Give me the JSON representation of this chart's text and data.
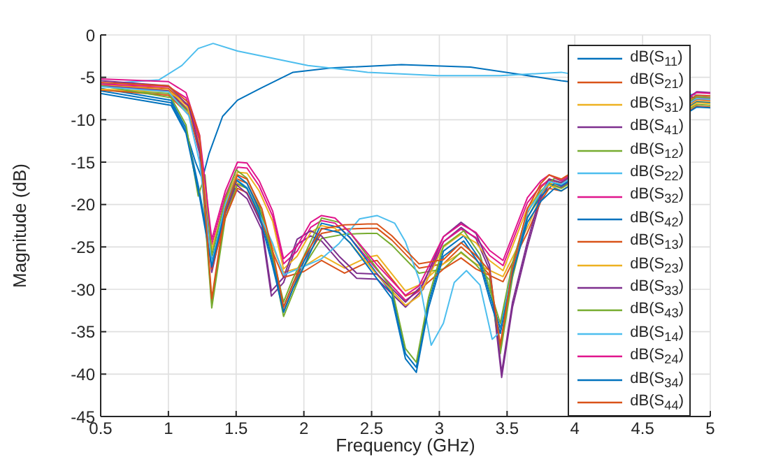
{
  "chart_data": {
    "type": "line",
    "xlabel": "Frequency (GHz)",
    "ylabel": "Magnitude (dB)",
    "xlim": [
      0.5,
      5
    ],
    "xticks": [
      0.5,
      1,
      1.5,
      2,
      2.5,
      3,
      3.5,
      4,
      4.5,
      5
    ],
    "ylim": [
      -45,
      0
    ],
    "yticks": [
      -45,
      -40,
      -35,
      -30,
      -25,
      -20,
      -15,
      -10,
      -5,
      0
    ],
    "grid": true,
    "legend": "right",
    "marker": "none",
    "line_style": "solid",
    "series": [
      {
        "name": "dB(S$_{11}$)",
        "color": "#0072bd",
        "x": [
          0.5,
          1.02,
          1.13,
          1.2,
          1.25,
          1.3,
          1.4,
          1.51,
          1.68,
          1.92,
          2.2,
          2.72,
          3.23,
          3.57,
          3.9,
          4.9,
          5
        ],
        "values": [
          -6.6,
          -8,
          -11.4,
          -15,
          -17,
          -14,
          -9.6,
          -7.7,
          -6.3,
          -4.4,
          -3.9,
          -3.5,
          -3.8,
          -4.6,
          -5.4,
          -7.4,
          -7.5
        ]
      },
      {
        "name": "dB(S$_{21}$)",
        "color": "#d95319",
        "x": [
          0.5,
          1.0,
          1.15,
          1.23,
          1.32,
          1.42,
          1.51,
          1.58,
          1.69,
          1.77,
          1.85,
          2.0,
          2.13,
          2.3,
          2.47,
          2.54,
          2.65,
          2.85,
          3.03,
          3.16,
          3.27,
          3.37,
          3.45,
          3.54,
          3.65,
          3.75,
          3.81,
          3.9,
          4.9,
          5
        ],
        "values": [
          -5.9,
          -6.3,
          -8.5,
          -12.4,
          -31.6,
          -21,
          -17,
          -17.5,
          -21,
          -26,
          -32.6,
          -26.7,
          -23.4,
          -22.9,
          -22.8,
          -22.8,
          -24.2,
          -27.5,
          -27,
          -25,
          -26.5,
          -28.3,
          -37,
          -28,
          -21,
          -18,
          -17,
          -17.5,
          -7.6,
          -7.7
        ]
      },
      {
        "name": "dB(S$_{31}$)",
        "color": "#edb120",
        "x": [
          0.5,
          1.0,
          1.15,
          1.23,
          1.32,
          1.42,
          1.51,
          1.58,
          1.69,
          1.77,
          1.85,
          2.0,
          2.13,
          2.3,
          2.47,
          2.54,
          2.75,
          2.85,
          3.03,
          3.16,
          3.27,
          3.47,
          3.65,
          3.75,
          3.81,
          3.9,
          4.9,
          5
        ],
        "values": [
          -5.9,
          -6.5,
          -8.8,
          -13,
          -27,
          -21,
          -17.5,
          -18,
          -21.5,
          -25,
          -28,
          -27.3,
          -26,
          -27.5,
          -26.2,
          -26,
          -30.2,
          -29.5,
          -27,
          -25.7,
          -27,
          -28.5,
          -22.7,
          -19,
          -17.5,
          -17.8,
          -7.8,
          -7.9
        ]
      },
      {
        "name": "dB(S$_{41}$)",
        "color": "#7e2f8e",
        "x": [
          0.5,
          1.0,
          1.15,
          1.23,
          1.32,
          1.42,
          1.49,
          1.58,
          1.69,
          1.76,
          1.85,
          1.95,
          2.05,
          2.13,
          2.26,
          2.39,
          2.54,
          2.75,
          2.88,
          3.03,
          3.16,
          3.27,
          3.37,
          3.46,
          3.54,
          3.65,
          3.75,
          3.81,
          3.9,
          4.9,
          5
        ],
        "values": [
          -6,
          -6.6,
          -9,
          -14,
          -28,
          -21,
          -18.1,
          -19.3,
          -23,
          -30.8,
          -29.2,
          -24.7,
          -23.7,
          -24.3,
          -26.7,
          -28.7,
          -28.8,
          -32.1,
          -30,
          -24.4,
          -22.7,
          -24,
          -27.7,
          -40.4,
          -32.1,
          -25,
          -19.3,
          -17.6,
          -18,
          -7.3,
          -7.4
        ]
      },
      {
        "name": "dB(S$_{12}$)",
        "color": "#77ac30",
        "x": [
          0.5,
          1.0,
          1.15,
          1.23,
          1.32,
          1.42,
          1.51,
          1.58,
          1.69,
          1.77,
          1.85,
          2.0,
          2.13,
          2.3,
          2.47,
          2.54,
          2.65,
          2.85,
          3.03,
          3.16,
          3.27,
          3.37,
          3.45,
          3.54,
          3.65,
          3.75,
          3.81,
          3.9,
          4.9,
          5
        ],
        "values": [
          -6.5,
          -6.9,
          -9.1,
          -13,
          -32.2,
          -21.6,
          -17.6,
          -18.1,
          -21.6,
          -26.6,
          -33.2,
          -27.3,
          -24,
          -23.5,
          -23.4,
          -23.4,
          -24.8,
          -28.1,
          -27.6,
          -25.6,
          -27.1,
          -28.9,
          -37.6,
          -28.6,
          -21.6,
          -18.6,
          -17.6,
          -18.1,
          -8.2,
          -8.3
        ]
      },
      {
        "name": "dB(S$_{22}$)",
        "color": "#4dbeee",
        "x": [
          0.5,
          0.93,
          1.1,
          1.22,
          1.33,
          1.51,
          2.03,
          2.47,
          2.99,
          3.45,
          3.9,
          4.9,
          5
        ],
        "values": [
          -5.8,
          -5.3,
          -3.6,
          -1.6,
          -1,
          -1.9,
          -3.6,
          -4.4,
          -4.8,
          -4.8,
          -4.4,
          -7.1,
          -7.2
        ]
      },
      {
        "name": "dB(S$_{32}$)",
        "color": "#e0158c",
        "x": [
          0.5,
          1.0,
          1.13,
          1.23,
          1.32,
          1.42,
          1.51,
          1.58,
          1.67,
          1.77,
          1.85,
          1.95,
          2.05,
          2.13,
          2.23,
          2.34,
          2.54,
          2.75,
          2.85,
          3.03,
          3.16,
          3.27,
          3.37,
          3.47,
          3.65,
          3.75,
          3.81,
          3.9,
          4.9,
          5
        ],
        "values": [
          -5.8,
          -6.1,
          -7.4,
          -12.4,
          -24.7,
          -19,
          -15.6,
          -15.7,
          -17.8,
          -21.4,
          -27,
          -25.5,
          -22.7,
          -21.9,
          -22.2,
          -23.9,
          -27.7,
          -31.3,
          -30.2,
          -24.4,
          -22.9,
          -23.9,
          -26,
          -27.2,
          -19.8,
          -17.8,
          -17.1,
          -17.8,
          -7.4,
          -7.5
        ]
      },
      {
        "name": "dB(S$_{42}$)",
        "color": "#0072bd",
        "x": [
          0.5,
          1.02,
          1.13,
          1.23,
          1.32,
          1.42,
          1.5,
          1.58,
          1.67,
          1.77,
          1.85,
          1.92,
          2.0,
          2.13,
          2.26,
          2.34,
          2.65,
          2.75,
          2.83,
          2.92,
          3.03,
          3.18,
          3.3,
          3.37,
          3.45,
          3.54,
          3.65,
          3.75,
          3.85,
          3.9,
          4.9,
          5
        ],
        "values": [
          -6.3,
          -7.7,
          -11,
          -18.5,
          -26.7,
          -20,
          -16.5,
          -17.5,
          -20.6,
          -26.7,
          -32.1,
          -29.3,
          -26.7,
          -22.2,
          -22.7,
          -23.9,
          -30.5,
          -37.6,
          -39.2,
          -31.6,
          -25.5,
          -23.7,
          -26.5,
          -30.5,
          -34.6,
          -27.5,
          -21.5,
          -19,
          -17.5,
          -17.8,
          -7.9,
          -8
        ]
      },
      {
        "name": "dB(S$_{13}$)",
        "color": "#d95319",
        "x": [
          0.5,
          1.0,
          1.15,
          1.23,
          1.32,
          1.42,
          1.51,
          1.58,
          1.69,
          1.77,
          1.85,
          2.0,
          2.13,
          2.3,
          2.47,
          2.54,
          2.75,
          2.85,
          3.03,
          3.16,
          3.27,
          3.47,
          3.65,
          3.75,
          3.81,
          3.9,
          4.9,
          5
        ],
        "values": [
          -6.5,
          -7.1,
          -9.4,
          -13.6,
          -27.6,
          -21.6,
          -18.1,
          -18.6,
          -22.1,
          -25.6,
          -28.6,
          -27.9,
          -26.6,
          -28.1,
          -26.8,
          -26.6,
          -30.8,
          -30.1,
          -27.6,
          -26.3,
          -27.6,
          -29.1,
          -23.3,
          -19.6,
          -18.1,
          -18.4,
          -8.4,
          -8.5
        ]
      },
      {
        "name": "dB(S$_{23}$)",
        "color": "#edb120",
        "x": [
          0.5,
          1.0,
          1.13,
          1.23,
          1.32,
          1.42,
          1.51,
          1.58,
          1.67,
          1.77,
          1.85,
          1.95,
          2.05,
          2.13,
          2.23,
          2.34,
          2.54,
          2.75,
          2.85,
          3.03,
          3.16,
          3.27,
          3.37,
          3.47,
          3.65,
          3.75,
          3.81,
          3.9,
          4.9,
          5
        ],
        "values": [
          -6.4,
          -6.7,
          -8,
          -13,
          -25.3,
          -19.6,
          -16.2,
          -16.3,
          -18.4,
          -22,
          -27.6,
          -26.1,
          -23.3,
          -22.5,
          -22.8,
          -24.5,
          -28.3,
          -31.9,
          -30.8,
          -25,
          -23.5,
          -24.5,
          -26.6,
          -27.8,
          -20.4,
          -18.4,
          -17.7,
          -18.4,
          -8,
          -8.1
        ]
      },
      {
        "name": "dB(S$_{33}$)",
        "color": "#7e2f8e",
        "x": [
          0.5,
          1.0,
          1.15,
          1.23,
          1.32,
          1.42,
          1.49,
          1.58,
          1.69,
          1.76,
          1.85,
          1.95,
          2.05,
          2.13,
          2.26,
          2.39,
          2.54,
          2.75,
          2.88,
          3.03,
          3.16,
          3.27,
          3.37,
          3.46,
          3.54,
          3.65,
          3.75,
          3.81,
          3.9,
          4.9,
          5
        ],
        "values": [
          -5.4,
          -6,
          -8.4,
          -13.4,
          -27.4,
          -20.4,
          -17.5,
          -18.7,
          -22.4,
          -30.2,
          -28.6,
          -24.1,
          -23.1,
          -23.7,
          -26.1,
          -28.1,
          -28.2,
          -31.5,
          -29.4,
          -23.8,
          -22.1,
          -23.4,
          -27.1,
          -39.8,
          -31.5,
          -24.4,
          -18.7,
          -17,
          -17.4,
          -6.7,
          -6.8
        ]
      },
      {
        "name": "dB(S$_{43}$)",
        "color": "#77ac30",
        "x": [
          0.5,
          1.02,
          1.13,
          1.22,
          1.27,
          1.32,
          1.42,
          1.5,
          1.58,
          1.67,
          1.77,
          1.85,
          1.92,
          2.0,
          2.13,
          2.26,
          2.34,
          2.65,
          2.75,
          2.83,
          2.92,
          3.03,
          3.18,
          3.3,
          3.37,
          3.45,
          3.54,
          3.65,
          3.75,
          3.85,
          3.9,
          4.9,
          5
        ],
        "values": [
          -6,
          -7.4,
          -10.6,
          -19,
          -16.5,
          -26,
          -19.4,
          -15.9,
          -16.9,
          -20,
          -26.1,
          -31.5,
          -28.7,
          -26.1,
          -21.6,
          -22.1,
          -23.3,
          -29.9,
          -37,
          -38.6,
          -31,
          -24.9,
          -23.1,
          -25.9,
          -29.9,
          -34,
          -26.9,
          -20.9,
          -18.4,
          -16.9,
          -17.2,
          -7.3,
          -7.4
        ]
      },
      {
        "name": "dB(S$_{14}$)",
        "color": "#4dbeee",
        "x": [
          0.5,
          1.0,
          1.15,
          1.23,
          1.32,
          1.42,
          1.5,
          1.58,
          1.77,
          1.85,
          2.0,
          2.13,
          2.26,
          2.41,
          2.54,
          2.67,
          2.75,
          2.85,
          2.94,
          3.03,
          3.11,
          3.2,
          3.3,
          3.39,
          3.45,
          3.54,
          3.65,
          3.81,
          3.9,
          4.9,
          5
        ],
        "values": [
          -6.1,
          -6.7,
          -9.5,
          -15,
          -27,
          -20,
          -17,
          -18,
          -24.6,
          -28.3,
          -27.3,
          -26.4,
          -24.6,
          -21.7,
          -21.3,
          -22.2,
          -24.4,
          -28.8,
          -36.6,
          -34,
          -29.2,
          -27.8,
          -29.5,
          -35.9,
          -35,
          -27.5,
          -20.8,
          -17.3,
          -17.6,
          -7.5,
          -7.6
        ]
      },
      {
        "name": "dB(S$_{24}$)",
        "color": "#e0158c",
        "x": [
          0.5,
          1.0,
          1.13,
          1.23,
          1.32,
          1.42,
          1.51,
          1.58,
          1.67,
          1.77,
          1.85,
          1.95,
          2.05,
          2.13,
          2.23,
          2.34,
          2.54,
          2.75,
          2.85,
          3.03,
          3.16,
          3.27,
          3.37,
          3.47,
          3.65,
          3.75,
          3.81,
          3.9,
          4.9,
          5
        ],
        "values": [
          -5.2,
          -5.5,
          -6.8,
          -11.8,
          -24.1,
          -18.4,
          -15,
          -15.1,
          -17.2,
          -20.8,
          -26.4,
          -24.9,
          -22.1,
          -21.3,
          -21.6,
          -23.3,
          -27.1,
          -30.7,
          -29.6,
          -23.8,
          -22.3,
          -23.3,
          -25.4,
          -26.6,
          -19.2,
          -17.2,
          -16.5,
          -17.2,
          -6.8,
          -6.9
        ]
      },
      {
        "name": "dB(S$_{34}$)",
        "color": "#0072bd",
        "x": [
          0.5,
          1.02,
          1.13,
          1.23,
          1.32,
          1.42,
          1.5,
          1.58,
          1.67,
          1.77,
          1.85,
          1.92,
          2.0,
          2.13,
          2.26,
          2.34,
          2.65,
          2.75,
          2.83,
          2.92,
          3.03,
          3.18,
          3.3,
          3.37,
          3.45,
          3.54,
          3.65,
          3.75,
          3.85,
          3.9,
          4.9,
          5
        ],
        "values": [
          -6.9,
          -8.3,
          -11.6,
          -19.1,
          -27.3,
          -20.6,
          -17.1,
          -18.1,
          -21.2,
          -27.3,
          -32.7,
          -29.9,
          -27.3,
          -22.8,
          -23.3,
          -24.5,
          -31.1,
          -38.2,
          -39.8,
          -32.2,
          -26.1,
          -24.3,
          -27.1,
          -31.1,
          -35.2,
          -28.1,
          -22.1,
          -19.6,
          -18.1,
          -18.4,
          -8.5,
          -8.6
        ]
      },
      {
        "name": "dB(S$_{44}$)",
        "color": "#d95319",
        "x": [
          0.5,
          1.0,
          1.15,
          1.23,
          1.32,
          1.42,
          1.51,
          1.58,
          1.69,
          1.77,
          1.85,
          2.0,
          2.13,
          2.3,
          2.47,
          2.54,
          2.65,
          2.85,
          3.03,
          3.16,
          3.27,
          3.37,
          3.45,
          3.54,
          3.65,
          3.75,
          3.81,
          3.9,
          4.9,
          5
        ],
        "values": [
          -5.6,
          -6,
          -8,
          -11.9,
          -31.1,
          -20.5,
          -16.5,
          -17,
          -20.5,
          -25.5,
          -32.1,
          -26.2,
          -22.9,
          -22.4,
          -22.3,
          -22.3,
          -23.7,
          -27,
          -26.5,
          -24.5,
          -26,
          -27.8,
          -36.5,
          -27.5,
          -20.5,
          -17.5,
          -16.5,
          -17,
          -7.1,
          -7.2
        ]
      }
    ]
  }
}
